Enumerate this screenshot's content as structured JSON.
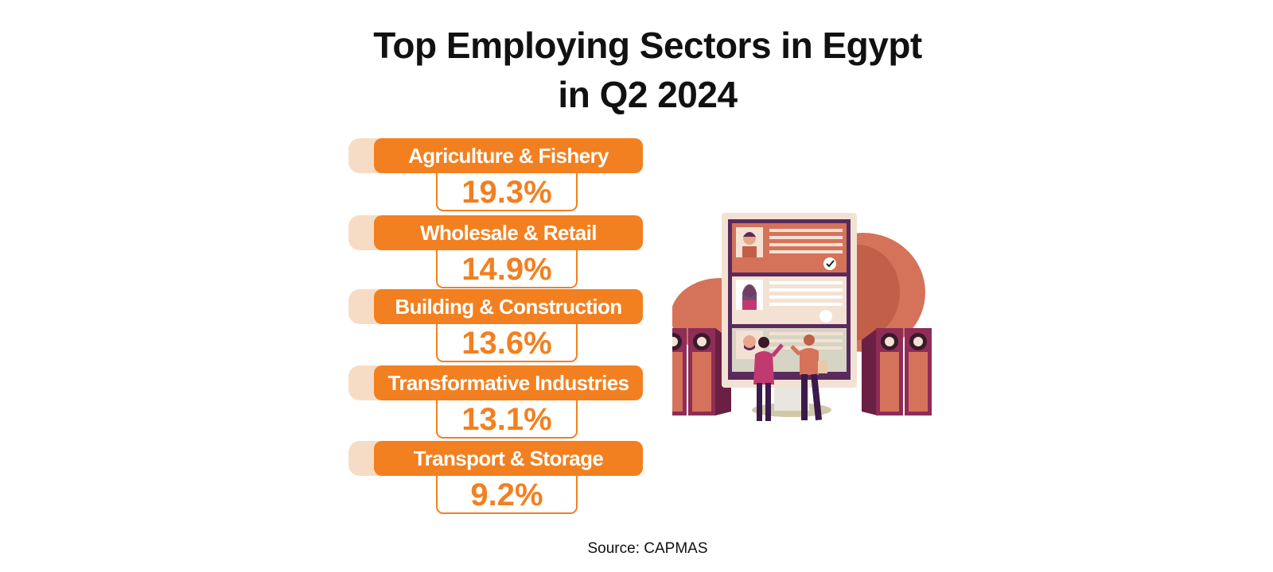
{
  "chart_data": {
    "type": "table",
    "title": [
      "Top Employing Sectors in Egypt",
      "in Q2 2024"
    ],
    "rows": [
      {
        "label": "Agriculture & Fishery",
        "value": "19.3%"
      },
      {
        "label": "Wholesale & Retail",
        "value": "14.9%"
      },
      {
        "label": "Building & Construction",
        "value": "13.6%"
      },
      {
        "label": "Transformative Industries",
        "value": "13.1%"
      },
      {
        "label": "Transport & Storage",
        "value": "9.2%"
      }
    ],
    "values": [
      19.3,
      14.9,
      13.6,
      13.1,
      9.2
    ],
    "source": "Source: CAPMAS"
  },
  "colors": {
    "accent": "#f28020",
    "tab": "#f7dcc5",
    "illustration_primary": "#d4735a",
    "illustration_dark": "#8e2d57"
  },
  "illustration": {
    "icon": "job-candidates-board-illustration"
  }
}
